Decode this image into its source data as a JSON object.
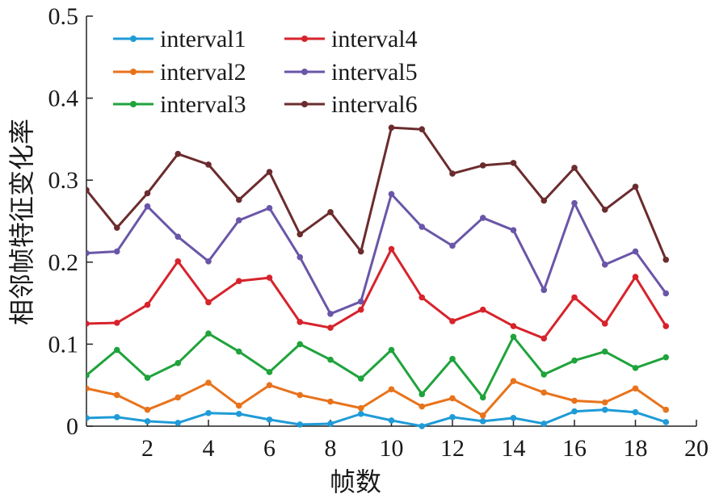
{
  "chart_data": {
    "type": "line",
    "title": "",
    "xlabel": "帧数",
    "ylabel": "相邻帧特征变化率",
    "xlim": [
      0,
      20
    ],
    "ylim": [
      0,
      0.5
    ],
    "xticks": [
      "2",
      "4",
      "6",
      "8",
      "10",
      "12",
      "14",
      "16",
      "18",
      "20"
    ],
    "yticks": [
      "0",
      "0.1",
      "0.2",
      "0.3",
      "0.4",
      "0.5"
    ],
    "grid": false,
    "legend_position": "top-left",
    "x": [
      0,
      1,
      2,
      3,
      4,
      5,
      6,
      7,
      8,
      9,
      10,
      11,
      12,
      13,
      14,
      15,
      16,
      17,
      18,
      19
    ],
    "series": [
      {
        "name": "interval1",
        "color": "#1f9bd7",
        "values": [
          0.01,
          0.011,
          0.006,
          0.004,
          0.016,
          0.015,
          0.008,
          0.002,
          0.003,
          0.015,
          0.007,
          0.0,
          0.011,
          0.006,
          0.01,
          0.003,
          0.018,
          0.02,
          0.017,
          0.005
        ]
      },
      {
        "name": "interval2",
        "color": "#e8731c",
        "values": [
          0.046,
          0.038,
          0.02,
          0.035,
          0.053,
          0.025,
          0.05,
          0.038,
          0.03,
          0.022,
          0.045,
          0.024,
          0.034,
          0.013,
          0.055,
          0.041,
          0.031,
          0.029,
          0.046,
          0.02
        ]
      },
      {
        "name": "interval3",
        "color": "#1fa33c",
        "values": [
          0.062,
          0.093,
          0.059,
          0.077,
          0.113,
          0.091,
          0.066,
          0.1,
          0.081,
          0.058,
          0.093,
          0.039,
          0.082,
          0.035,
          0.109,
          0.063,
          0.08,
          0.091,
          0.071,
          0.084
        ]
      },
      {
        "name": "interval4",
        "color": "#d7232b",
        "values": [
          0.125,
          0.126,
          0.148,
          0.201,
          0.151,
          0.177,
          0.181,
          0.127,
          0.12,
          0.142,
          0.216,
          0.157,
          0.128,
          0.142,
          0.122,
          0.107,
          0.157,
          0.125,
          0.182,
          0.122
        ]
      },
      {
        "name": "interval5",
        "color": "#6a56a8",
        "values": [
          0.211,
          0.213,
          0.268,
          0.231,
          0.201,
          0.251,
          0.266,
          0.206,
          0.137,
          0.152,
          0.283,
          0.243,
          0.22,
          0.254,
          0.239,
          0.166,
          0.272,
          0.197,
          0.213,
          0.162
        ]
      },
      {
        "name": "interval6",
        "color": "#6b2c2e",
        "values": [
          0.288,
          0.242,
          0.284,
          0.332,
          0.319,
          0.276,
          0.31,
          0.234,
          0.261,
          0.213,
          0.364,
          0.362,
          0.308,
          0.318,
          0.321,
          0.275,
          0.315,
          0.264,
          0.292,
          0.203
        ]
      }
    ]
  }
}
